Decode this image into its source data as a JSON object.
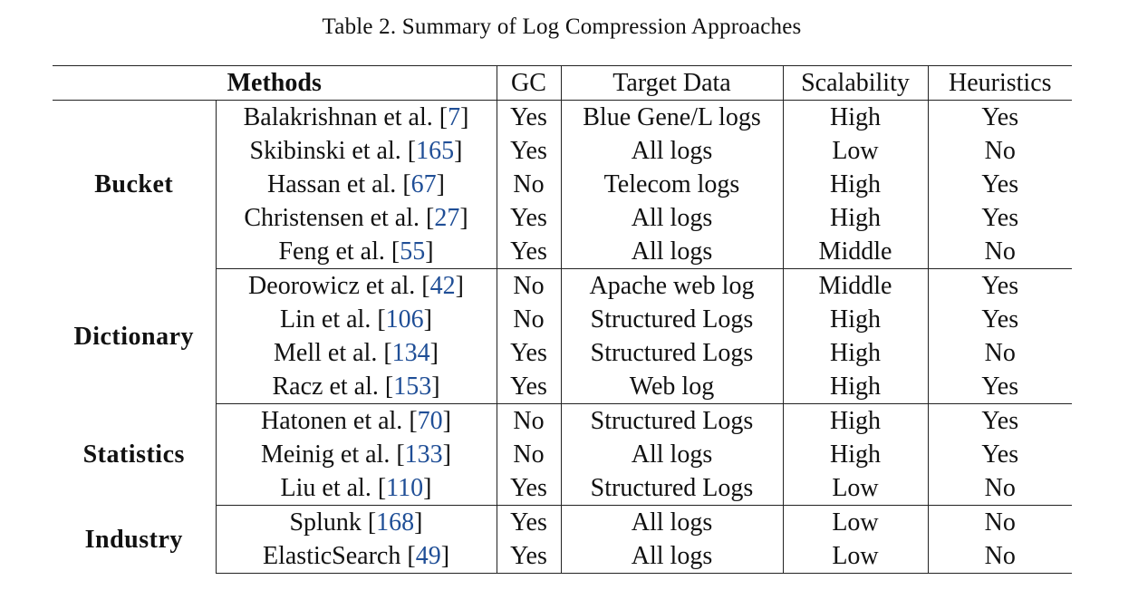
{
  "caption": "Table 2.  Summary of Log Compression Approaches",
  "header": {
    "methods": "Methods",
    "gc": "GC",
    "target_data": "Target Data",
    "scalability": "Scalability",
    "heuristics": "Heuristics"
  },
  "groups": [
    {
      "category": "Bucket",
      "rows": [
        {
          "method": "Balakrishnan et al. ",
          "ref": "7",
          "gc": "Yes",
          "target": "Blue Gene/L logs",
          "scalability": "High",
          "heuristics": "Yes"
        },
        {
          "method": "Skibinski et al. ",
          "ref": "165",
          "gc": "Yes",
          "target": "All logs",
          "scalability": "Low",
          "heuristics": "No"
        },
        {
          "method": "Hassan et al. ",
          "ref": "67",
          "gc": "No",
          "target": "Telecom logs",
          "scalability": "High",
          "heuristics": "Yes"
        },
        {
          "method": "Christensen et al. ",
          "ref": "27",
          "gc": "Yes",
          "target": "All logs",
          "scalability": "High",
          "heuristics": "Yes"
        },
        {
          "method": "Feng et al. ",
          "ref": "55",
          "gc": "Yes",
          "target": "All logs",
          "scalability": "Middle",
          "heuristics": "No"
        }
      ]
    },
    {
      "category": "Dictionary",
      "rows": [
        {
          "method": "Deorowicz et al. ",
          "ref": "42",
          "gc": "No",
          "target": "Apache web log",
          "scalability": "Middle",
          "heuristics": "Yes"
        },
        {
          "method": "Lin et al. ",
          "ref": "106",
          "gc": "No",
          "target": "Structured Logs",
          "scalability": "High",
          "heuristics": "Yes"
        },
        {
          "method": "Mell et al. ",
          "ref": "134",
          "gc": "Yes",
          "target": "Structured Logs",
          "scalability": "High",
          "heuristics": "No"
        },
        {
          "method": "Racz et al. ",
          "ref": "153",
          "gc": "Yes",
          "target": "Web log",
          "scalability": "High",
          "heuristics": "Yes"
        }
      ]
    },
    {
      "category": "Statistics",
      "rows": [
        {
          "method": "Hatonen et al. ",
          "ref": "70",
          "gc": "No",
          "target": "Structured Logs",
          "scalability": "High",
          "heuristics": "Yes"
        },
        {
          "method": "Meinig et al. ",
          "ref": "133",
          "gc": "No",
          "target": "All logs",
          "scalability": "High",
          "heuristics": "Yes"
        },
        {
          "method": "Liu et al. ",
          "ref": "110",
          "gc": "Yes",
          "target": "Structured Logs",
          "scalability": "Low",
          "heuristics": "No"
        }
      ]
    },
    {
      "category": "Industry",
      "rows": [
        {
          "method": "Splunk ",
          "ref": "168",
          "gc": "Yes",
          "target": "All logs",
          "scalability": "Low",
          "heuristics": "No"
        },
        {
          "method": "ElasticSearch ",
          "ref": "49",
          "gc": "Yes",
          "target": "All logs",
          "scalability": "Low",
          "heuristics": "No"
        }
      ]
    }
  ]
}
